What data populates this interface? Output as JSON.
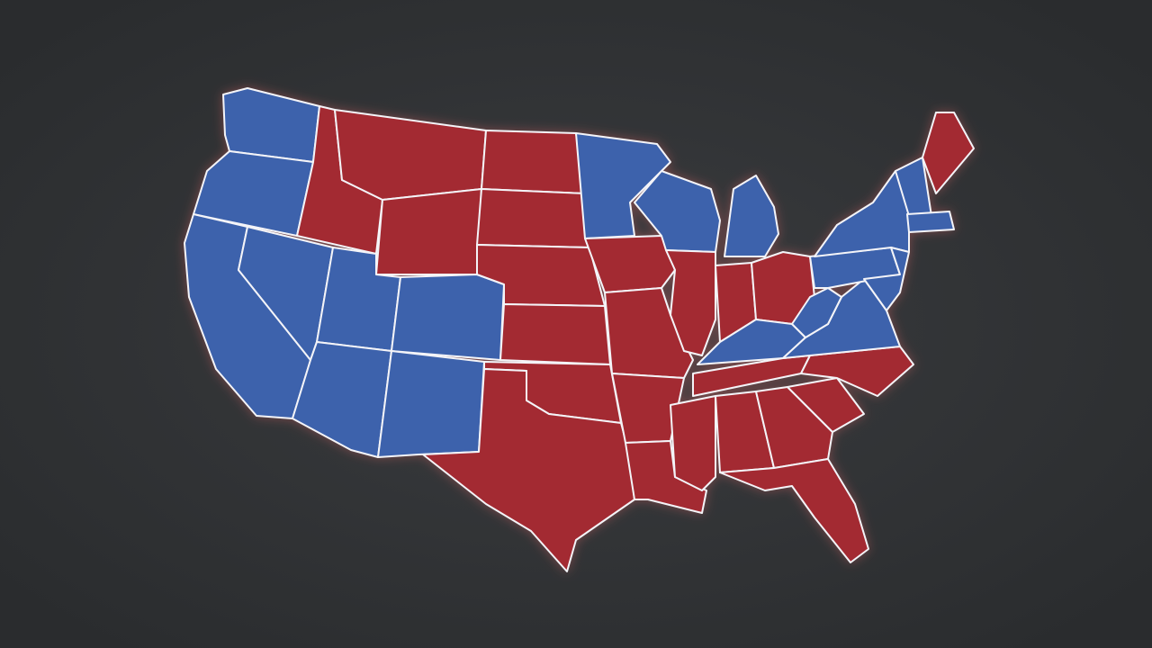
{
  "map": {
    "fills": [
      "#a32a33",
      "#3d62ac"
    ],
    "outline": "#f4f4f8"
  }
}
